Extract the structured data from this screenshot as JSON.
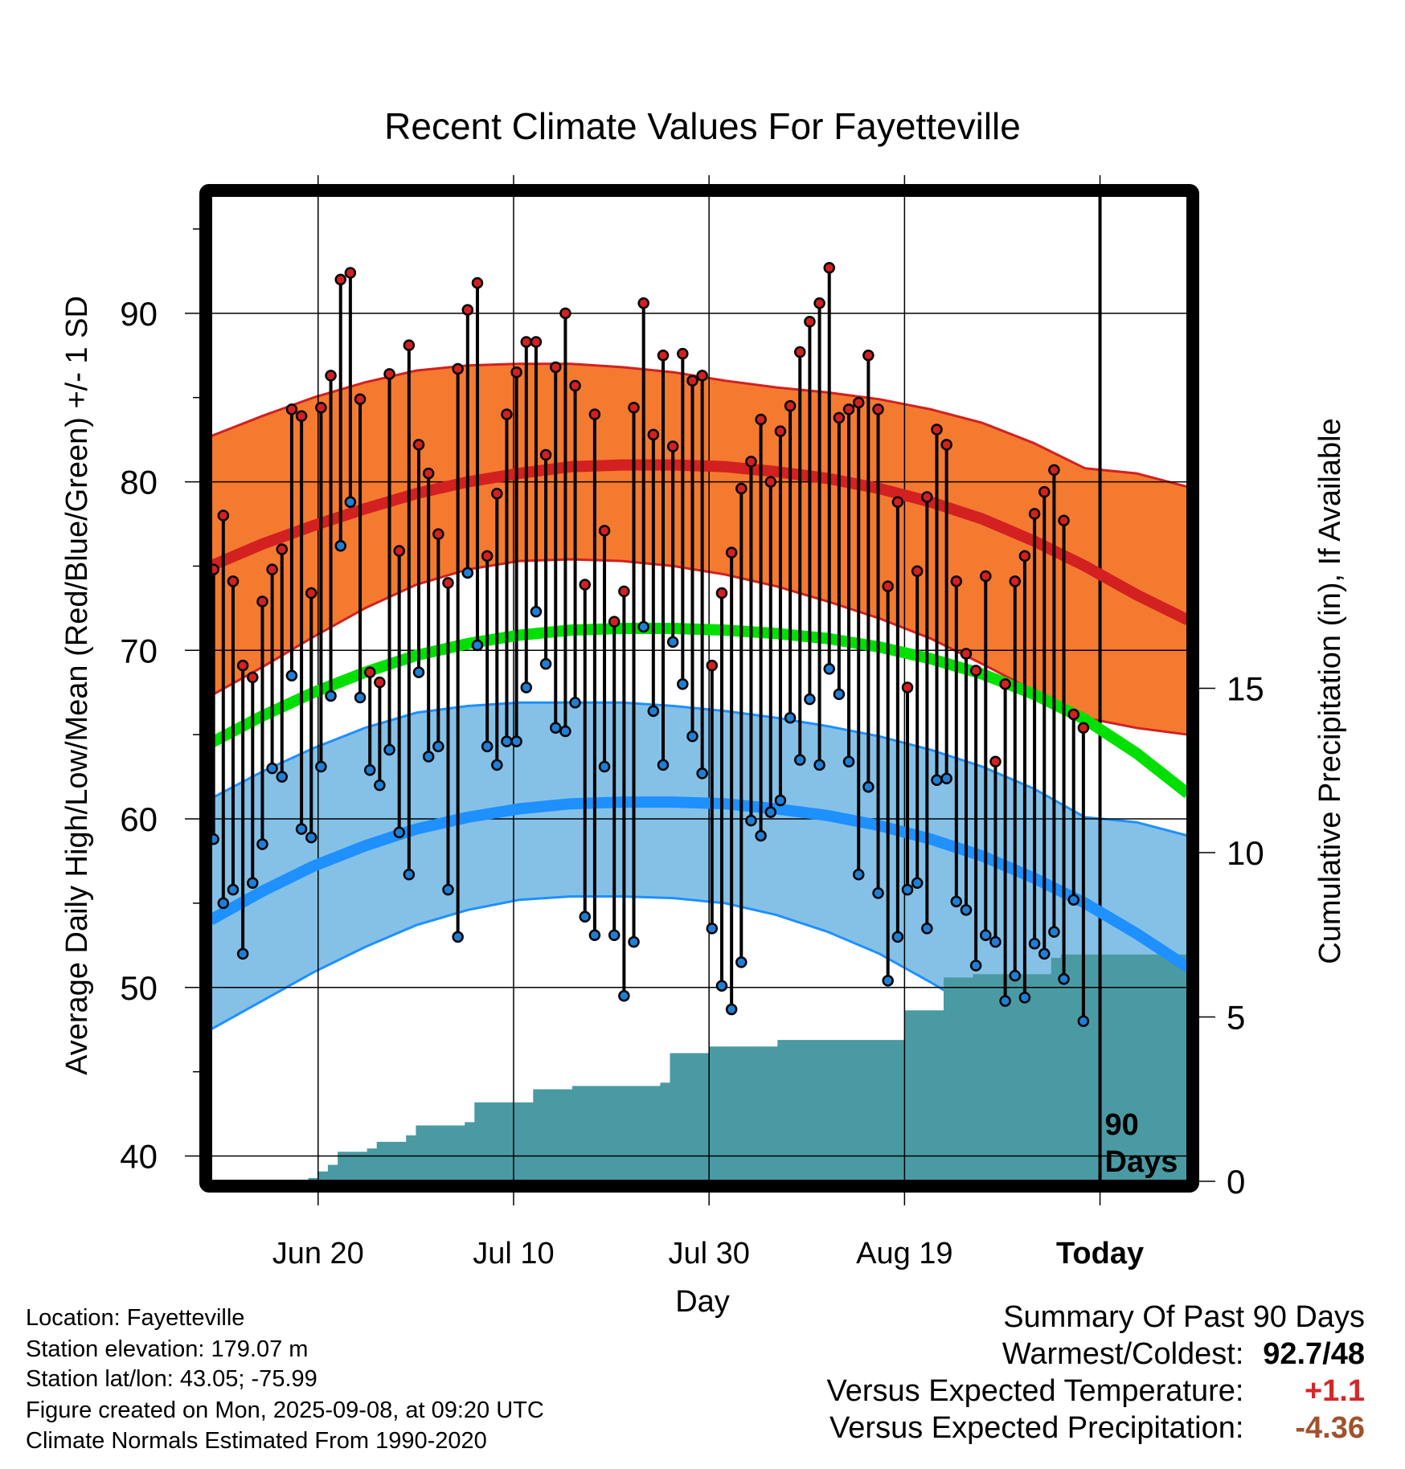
{
  "chart_data": {
    "type": "line",
    "title": "Recent Climate Values For Fayetteville",
    "xlabel": "Day",
    "ylabel": "Average Daily High/Low/Mean (Red/Blue/Green) +/- 1 SD",
    "y2label": "Cumulative Precipitation (in), If Available",
    "x_tick_labels": [
      "Jun 20",
      "Jul 10",
      "Jul 30",
      "Aug 19",
      "Today"
    ],
    "x_tick_days": [
      11,
      31,
      51,
      71,
      91
    ],
    "ylim": [
      38.5,
      97
    ],
    "y_ticks": [
      40,
      50,
      60,
      70,
      80,
      90
    ],
    "y2lim": [
      0,
      30
    ],
    "y2_ticks": [
      0,
      5,
      10,
      15
    ],
    "today_label": "90 Days",
    "normals": {
      "high": [
        75.0,
        76.3,
        77.4,
        78.4,
        79.3,
        80.0,
        80.5,
        80.9,
        81.0,
        81.0,
        80.9,
        80.6,
        80.2,
        79.6,
        78.8,
        77.8,
        76.5,
        75.0,
        73.3,
        71.8
      ],
      "low": [
        54.0,
        55.7,
        57.2,
        58.4,
        59.4,
        60.1,
        60.6,
        60.9,
        61.0,
        61.0,
        60.9,
        60.6,
        60.2,
        59.6,
        58.8,
        57.8,
        56.5,
        55.0,
        53.2,
        51.2
      ],
      "mean": [
        64.5,
        66.1,
        67.5,
        68.7,
        69.7,
        70.4,
        70.9,
        71.2,
        71.3,
        71.3,
        71.2,
        71.0,
        70.7,
        70.2,
        69.5,
        68.6,
        67.4,
        65.9,
        63.9,
        61.5
      ],
      "high_sd_upper": [
        82.7,
        83.9,
        85.0,
        85.9,
        86.6,
        86.9,
        87.0,
        87.0,
        86.8,
        86.5,
        86.0,
        85.6,
        85.3,
        84.9,
        84.3,
        83.5,
        82.3,
        80.8,
        80.5,
        79.7
      ],
      "high_sd_lower": [
        67.3,
        69.0,
        70.8,
        72.5,
        73.9,
        74.8,
        75.3,
        75.4,
        75.3,
        75.0,
        74.5,
        73.8,
        72.9,
        71.9,
        70.7,
        69.2,
        67.6,
        66.0,
        65.4,
        65.0
      ],
      "low_sd_upper": [
        61.2,
        62.8,
        64.2,
        65.4,
        66.3,
        66.7,
        66.9,
        66.9,
        66.9,
        66.7,
        66.4,
        66.0,
        65.5,
        64.9,
        64.1,
        63.1,
        61.8,
        60.1,
        59.8,
        59.0
      ],
      "low_sd_lower": [
        47.5,
        49.2,
        50.9,
        52.4,
        53.7,
        54.6,
        55.2,
        55.4,
        55.4,
        55.3,
        55.0,
        54.3,
        53.3,
        52.0,
        50.3,
        48.5,
        46.3,
        43.8,
        43.0,
        42.0
      ]
    },
    "daily_high": [
      74.8,
      78.0,
      74.1,
      69.1,
      68.4,
      72.9,
      74.8,
      76.0,
      84.3,
      83.9,
      73.4,
      84.4,
      86.3,
      92.0,
      92.4,
      84.9,
      68.7,
      68.1,
      86.4,
      75.9,
      88.1,
      82.2,
      80.5,
      76.9,
      74.0,
      86.7,
      90.2,
      91.8,
      75.6,
      79.3,
      84.0,
      86.5,
      88.3,
      88.3,
      81.6,
      86.8,
      90.0,
      85.7,
      73.9,
      84.0,
      77.1,
      71.7,
      73.5,
      84.4,
      90.6,
      82.8,
      87.5,
      82.1,
      87.6,
      86.0,
      86.3,
      69.1,
      73.4,
      75.8,
      79.6,
      81.2,
      83.7,
      80.0,
      83.0,
      84.5,
      87.7,
      89.5,
      90.6,
      92.7,
      83.8,
      84.3,
      84.7,
      87.5,
      84.3,
      73.8,
      78.8,
      67.8,
      74.7,
      79.1,
      83.1,
      82.2,
      74.1,
      69.8,
      68.8,
      74.4,
      63.4,
      68.0,
      74.1,
      75.6,
      78.1,
      79.4,
      80.7,
      77.7,
      66.2,
      65.4
    ],
    "daily_low": [
      58.8,
      55.0,
      55.8,
      52.0,
      56.2,
      58.5,
      63.0,
      62.5,
      68.5,
      59.4,
      58.9,
      63.1,
      67.3,
      76.2,
      78.8,
      67.2,
      62.9,
      62.0,
      64.1,
      59.2,
      56.7,
      68.7,
      63.7,
      64.3,
      55.8,
      53.0,
      74.6,
      70.3,
      64.3,
      63.2,
      64.6,
      64.6,
      67.8,
      72.3,
      69.2,
      65.4,
      65.2,
      66.9,
      54.2,
      53.1,
      63.1,
      53.1,
      49.5,
      52.7,
      71.4,
      66.4,
      63.2,
      70.5,
      68.0,
      64.9,
      62.7,
      53.5,
      50.1,
      48.7,
      51.5,
      59.9,
      59.0,
      60.4,
      61.1,
      66.0,
      63.5,
      67.1,
      63.2,
      68.9,
      67.4,
      63.4,
      56.7,
      61.9,
      55.6,
      50.4,
      53.0,
      55.8,
      56.2,
      53.5,
      62.3,
      62.4,
      55.1,
      54.6,
      51.3,
      53.1,
      52.7,
      49.2,
      50.7,
      49.4,
      52.6,
      52.0,
      53.3,
      50.5,
      55.2,
      48.0
    ],
    "cumulative_precipitation": [
      0.0,
      0.0,
      0.0,
      0.0,
      0.0,
      0.0,
      0.0,
      0.0,
      0.0,
      0.05,
      0.1,
      0.3,
      0.5,
      0.9,
      0.9,
      0.9,
      1.0,
      1.2,
      1.2,
      1.2,
      1.4,
      1.7,
      1.7,
      1.7,
      1.7,
      1.7,
      1.8,
      2.4,
      2.4,
      2.4,
      2.4,
      2.4,
      2.4,
      2.8,
      2.8,
      2.8,
      2.8,
      2.9,
      2.9,
      2.9,
      2.9,
      2.9,
      2.9,
      2.9,
      2.9,
      2.9,
      3.0,
      3.9,
      3.9,
      3.9,
      3.9,
      4.1,
      4.1,
      4.1,
      4.1,
      4.1,
      4.1,
      4.1,
      4.3,
      4.3,
      4.3,
      4.3,
      4.3,
      4.3,
      4.3,
      4.3,
      4.3,
      4.3,
      4.3,
      4.3,
      4.3,
      5.2,
      5.2,
      5.2,
      5.2,
      6.2,
      6.2,
      6.2,
      6.3,
      6.3,
      6.3,
      6.3,
      6.3,
      6.3,
      6.3,
      6.3,
      6.8,
      6.9,
      6.9,
      6.9
    ]
  },
  "footer": {
    "location": "Location: Fayetteville",
    "elevation": "Station elevation: 179.07 m",
    "latlon": "Station lat/lon: 43.05; -75.99",
    "created": "Figure created on Mon, 2025-09-08, at 09:20 UTC",
    "normals": "Climate Normals Estimated From 1990-2020"
  },
  "summary": {
    "title": "Summary Of Past 90 Days",
    "warm_cold_label": "Warmest/Coldest:",
    "warm_cold_value": "92.7/48",
    "temp_label": "Versus Expected Temperature:",
    "temp_value": "+1.1",
    "temp_color": "#d62728",
    "precip_label": "Versus Expected Precipitation:",
    "precip_value": "-4.36",
    "precip_color": "#a0522d"
  },
  "colors": {
    "high_band": "#f47a30",
    "high_line": "#d32020",
    "mean_line": "#00e000",
    "low_band": "#85c1e6",
    "low_line": "#1e90ff",
    "precip": "#4a9aa3",
    "high_dot": "#d32020",
    "low_dot": "#1e7fd6"
  }
}
